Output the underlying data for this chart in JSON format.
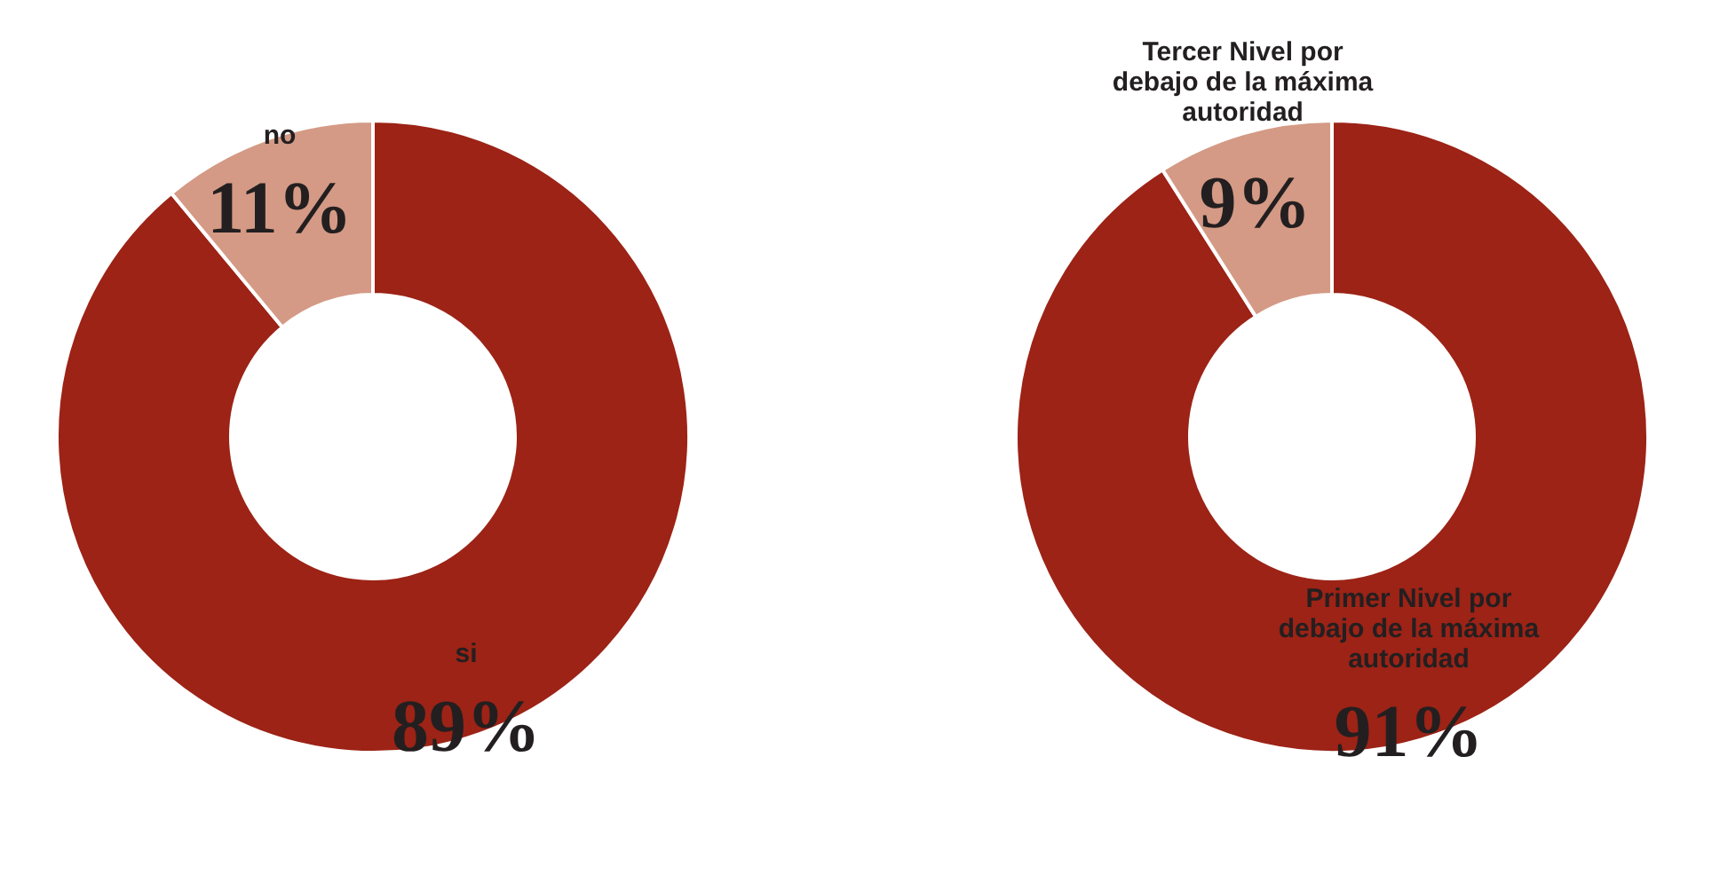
{
  "chart_data": [
    {
      "type": "donut",
      "categories": [
        "si",
        "no"
      ],
      "values": [
        89,
        11
      ],
      "colors": [
        "#9c2316",
        "#d49a85"
      ],
      "value_labels": [
        "89%",
        "11%"
      ],
      "legend": false
    },
    {
      "type": "donut",
      "categories": [
        "Primer Nivel por debajo de la máxima autoridad",
        "Tercer Nivel por debajo de la máxima autoridad"
      ],
      "values": [
        91,
        9
      ],
      "colors": [
        "#9c2316",
        "#d49a85"
      ],
      "value_labels": [
        "91%",
        "9%"
      ],
      "legend": false
    }
  ]
}
